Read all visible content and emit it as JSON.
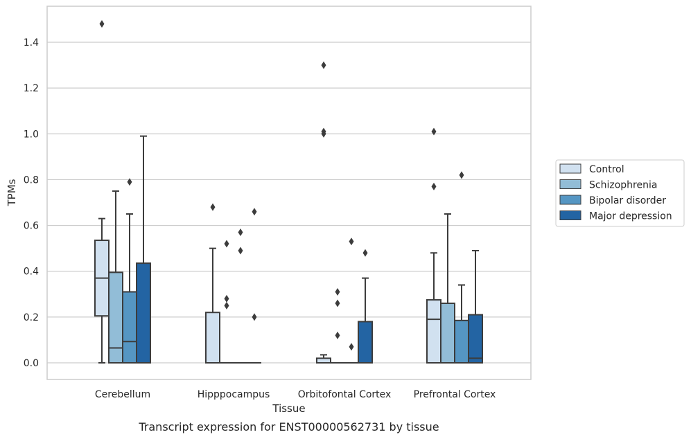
{
  "chart_data": {
    "type": "box",
    "caption": "Transcript expression for ENST00000562731 by tissue",
    "xlabel": "Tissue",
    "ylabel": "TPMs",
    "ylim": [
      -0.07,
      1.56
    ],
    "yticks": [
      "0.0",
      "0.2",
      "0.4",
      "0.6",
      "0.8",
      "1.0",
      "1.2",
      "1.4"
    ],
    "grid": "horizontal",
    "legend_placement": "right",
    "categories": [
      "Cerebellum",
      "Hipppocampus",
      "Orbitofontal Cortex",
      "Prefrontal Cortex"
    ],
    "series": [
      {
        "name": "Control",
        "color": "#d1e1f0",
        "boxes": [
          {
            "whisker_low": 0.0,
            "q1": 0.205,
            "median": 0.37,
            "q3": 0.535,
            "whisker_high": 0.63,
            "outliers": [
              1.48
            ]
          },
          {
            "whisker_low": 0.0,
            "q1": 0.0,
            "median": 0.0,
            "q3": 0.22,
            "whisker_high": 0.5,
            "outliers": [
              0.68
            ]
          },
          {
            "whisker_low": 0.0,
            "q1": 0.0,
            "median": 0.0,
            "q3": 0.02,
            "whisker_high": 0.035,
            "outliers": [
              1.0,
              1.01,
              1.3
            ]
          },
          {
            "whisker_low": 0.0,
            "q1": 0.0,
            "median": 0.19,
            "q3": 0.275,
            "whisker_high": 0.48,
            "outliers": [
              0.77,
              1.01
            ]
          }
        ]
      },
      {
        "name": "Schizophrenia",
        "color": "#92bdd7",
        "boxes": [
          {
            "whisker_low": 0.0,
            "q1": 0.0,
            "median": 0.065,
            "q3": 0.395,
            "whisker_high": 0.75,
            "outliers": []
          },
          {
            "whisker_low": 0.0,
            "q1": 0.0,
            "median": 0.0,
            "q3": 0.0,
            "whisker_high": 0.0,
            "outliers": [
              0.25,
              0.28,
              0.52
            ]
          },
          {
            "whisker_low": 0.0,
            "q1": 0.0,
            "median": 0.0,
            "q3": 0.0,
            "whisker_high": 0.0,
            "outliers": [
              0.12,
              0.26,
              0.31
            ]
          },
          {
            "whisker_low": 0.0,
            "q1": 0.0,
            "median": 0.0,
            "q3": 0.26,
            "whisker_high": 0.65,
            "outliers": []
          }
        ]
      },
      {
        "name": "Bipolar disorder",
        "color": "#5596c3",
        "boxes": [
          {
            "whisker_low": 0.0,
            "q1": 0.0,
            "median": 0.093,
            "q3": 0.31,
            "whisker_high": 0.65,
            "outliers": [
              0.79
            ]
          },
          {
            "whisker_low": 0.0,
            "q1": 0.0,
            "median": 0.0,
            "q3": 0.0,
            "whisker_high": 0.0,
            "outliers": [
              0.49,
              0.57
            ]
          },
          {
            "whisker_low": 0.0,
            "q1": 0.0,
            "median": 0.0,
            "q3": 0.0,
            "whisker_high": 0.0,
            "outliers": [
              0.07,
              0.53
            ]
          },
          {
            "whisker_low": 0.0,
            "q1": 0.0,
            "median": 0.0,
            "q3": 0.185,
            "whisker_high": 0.34,
            "outliers": [
              0.82
            ]
          }
        ]
      },
      {
        "name": "Major depression",
        "color": "#2364a3",
        "boxes": [
          {
            "whisker_low": 0.0,
            "q1": 0.0,
            "median": 0.0,
            "q3": 0.435,
            "whisker_high": 0.99,
            "outliers": []
          },
          {
            "whisker_low": 0.0,
            "q1": 0.0,
            "median": 0.0,
            "q3": 0.0,
            "whisker_high": 0.0,
            "outliers": [
              0.2,
              0.66
            ]
          },
          {
            "whisker_low": 0.0,
            "q1": 0.0,
            "median": 0.0,
            "q3": 0.18,
            "whisker_high": 0.37,
            "outliers": [
              0.48
            ]
          },
          {
            "whisker_low": 0.0,
            "q1": 0.0,
            "median": 0.02,
            "q3": 0.21,
            "whisker_high": 0.49,
            "outliers": []
          }
        ]
      }
    ]
  }
}
